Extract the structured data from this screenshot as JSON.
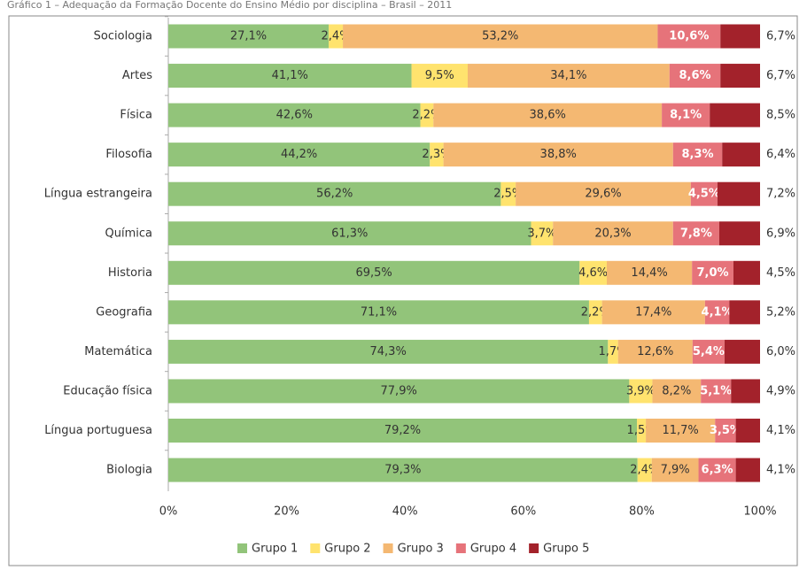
{
  "chart_data": {
    "type": "stacked_barh",
    "title": "Gráfico 1 – Adequação da Formação Docente do Ensino Médio por disciplina – Brasil – 2011",
    "categories": [
      "Sociologia",
      "Artes",
      "Física",
      "Filosofia",
      "Língua estrangeira",
      "Química",
      "Historia",
      "Geografia",
      "Matemática",
      "Educação física",
      "Língua portuguesa",
      "Biologia"
    ],
    "series": [
      {
        "name": "Grupo 1",
        "color": "#92c47a",
        "label_color": "#333333",
        "values": [
          27.1,
          41.1,
          42.6,
          44.2,
          56.2,
          61.3,
          69.5,
          71.1,
          74.3,
          77.9,
          79.2,
          79.3
        ],
        "value_labels": [
          "27,1%",
          "41,1%",
          "42,6%",
          "44,2%",
          "56,2%",
          "61,3%",
          "69,5%",
          "71,1%",
          "74,3%",
          "77,9%",
          "79,2%",
          "79,3%"
        ]
      },
      {
        "name": "Grupo 2",
        "color": "#ffe36e",
        "label_color": "#333333",
        "values": [
          2.4,
          9.5,
          2.2,
          2.3,
          2.5,
          3.7,
          4.6,
          2.2,
          1.7,
          3.9,
          1.5,
          2.4
        ],
        "value_labels": [
          "2,4%",
          "9,5%",
          "2,2%",
          "2,3%",
          "2,5%",
          "3,7%",
          "4,6%",
          "2,2%",
          "1,7%",
          "3,9%",
          "1,5%",
          "2,4%"
        ]
      },
      {
        "name": "Grupo 3",
        "color": "#f4b872",
        "label_color": "#333333",
        "values": [
          53.2,
          34.1,
          38.6,
          38.8,
          29.6,
          20.3,
          14.4,
          17.4,
          12.6,
          8.2,
          11.7,
          7.9
        ],
        "value_labels": [
          "53,2%",
          "34,1%",
          "38,6%",
          "38,8%",
          "29,6%",
          "20,3%",
          "14,4%",
          "17,4%",
          "12,6%",
          "8,2%",
          "11,7%",
          "7,9%"
        ]
      },
      {
        "name": "Grupo 4",
        "color": "#e6737a",
        "label_color": "#ffffff",
        "values": [
          10.6,
          8.6,
          8.1,
          8.3,
          4.5,
          7.8,
          7.0,
          4.1,
          5.4,
          5.1,
          3.5,
          6.3
        ],
        "value_labels": [
          "10,6%",
          "8,6%",
          "8,1%",
          "8,3%",
          "4,5%",
          "7,8%",
          "7,0%",
          "4,1%",
          "5,4%",
          "5,1%",
          "3,5%",
          "6,3%"
        ]
      },
      {
        "name": "Grupo 5",
        "color": "#a3222b",
        "label_color": "#333333",
        "label_outside": true,
        "values": [
          6.7,
          6.7,
          8.5,
          6.4,
          7.2,
          6.9,
          4.5,
          5.2,
          6.0,
          4.9,
          4.1,
          4.1
        ],
        "value_labels": [
          "6,7%",
          "6,7%",
          "8,5%",
          "6,4%",
          "7,2%",
          "6,9%",
          "4,5%",
          "5,2%",
          "6,0%",
          "4,9%",
          "4,1%",
          "4,1%"
        ]
      }
    ],
    "xlim": [
      0,
      100
    ],
    "xticks": [
      {
        "value": 0,
        "label": "0%"
      },
      {
        "value": 20,
        "label": "20%"
      },
      {
        "value": 40,
        "label": "40%"
      },
      {
        "value": 60,
        "label": "60%"
      },
      {
        "value": 80,
        "label": "80%"
      },
      {
        "value": 100,
        "label": "100%"
      }
    ],
    "legend": "bottom"
  }
}
